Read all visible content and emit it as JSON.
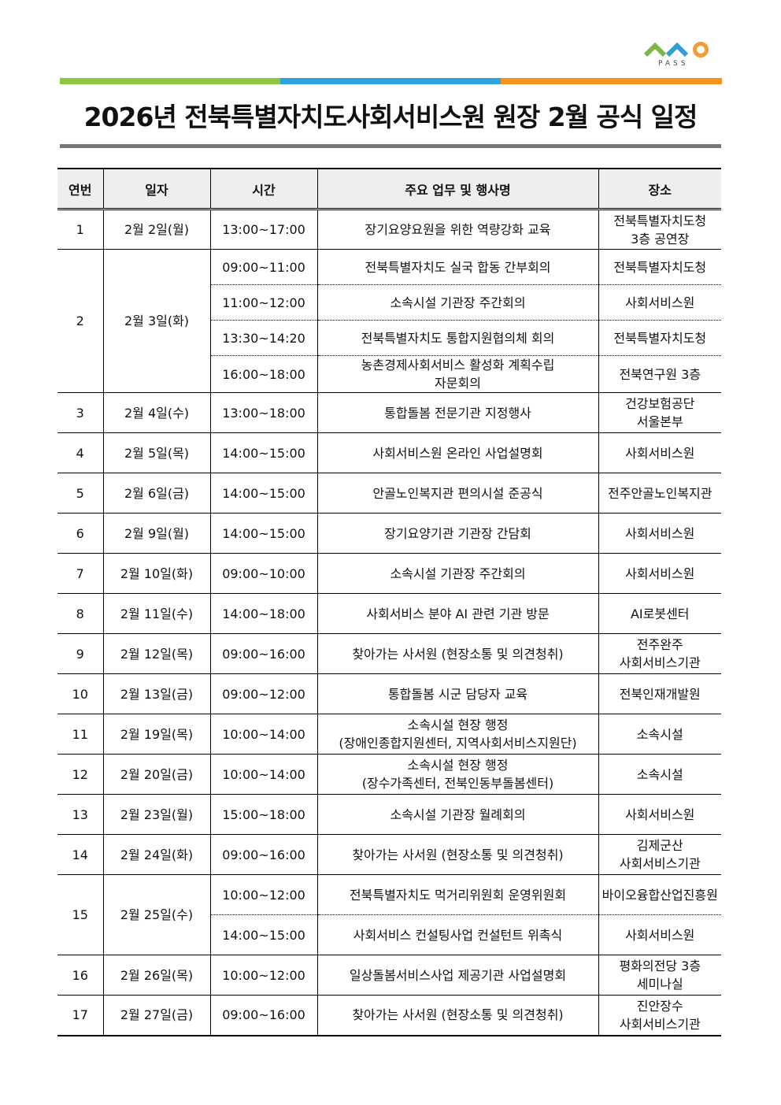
{
  "logo": {
    "text": "PASS",
    "colors": [
      "#7ab648",
      "#2e9fd9",
      "#f39a3a"
    ]
  },
  "header_bar_colors": [
    "#8dc63f",
    "#2ea3dc",
    "#f7941d"
  ],
  "title": "2026년 전북특별자치도사회서비스원 원장 2월 공식 일정",
  "table": {
    "headers": [
      "연번",
      "일자",
      "시간",
      "주요 업무 및 행사명",
      "장소"
    ],
    "rows": [
      {
        "no": "1",
        "date": "2월  2일(월)",
        "events": [
          {
            "time": "13:00~17:00",
            "title": "장기요양요원을 위한 역량강화 교육",
            "place": "전북특별자치도청\n3층 공연장"
          }
        ]
      },
      {
        "no": "2",
        "date": "2월  3일(화)",
        "events": [
          {
            "time": "09:00~11:00",
            "title": "전북특별자치도 실국 합동 간부회의",
            "place": "전북특별자치도청"
          },
          {
            "time": "11:00~12:00",
            "title": "소속시설 기관장 주간회의",
            "place": "사회서비스원"
          },
          {
            "time": "13:30~14:20",
            "title": "전북특별자치도 통합지원협의체 회의",
            "place": "전북특별자치도청"
          },
          {
            "time": "16:00~18:00",
            "title": "농촌경제사회서비스 활성화 계획수립\n자문회의",
            "place": "전북연구원 3층"
          }
        ]
      },
      {
        "no": "3",
        "date": "2월  4일(수)",
        "events": [
          {
            "time": "13:00~18:00",
            "title": "통합돌봄 전문기관 지정행사",
            "place": "건강보험공단\n서울본부"
          }
        ]
      },
      {
        "no": "4",
        "date": "2월  5일(목)",
        "events": [
          {
            "time": "14:00~15:00",
            "title": "사회서비스원 온라인 사업설명회",
            "place": "사회서비스원"
          }
        ]
      },
      {
        "no": "5",
        "date": "2월  6일(금)",
        "events": [
          {
            "time": "14:00~15:00",
            "title": "안골노인복지관 편의시설 준공식",
            "place": "전주안골노인복지관"
          }
        ]
      },
      {
        "no": "6",
        "date": "2월  9일(월)",
        "events": [
          {
            "time": "14:00~15:00",
            "title": "장기요양기관 기관장 간담회",
            "place": "사회서비스원"
          }
        ]
      },
      {
        "no": "7",
        "date": "2월  10일(화)",
        "events": [
          {
            "time": "09:00~10:00",
            "title": "소속시설 기관장 주간회의",
            "place": "사회서비스원"
          }
        ]
      },
      {
        "no": "8",
        "date": "2월  11일(수)",
        "events": [
          {
            "time": "14:00~18:00",
            "title": "사회서비스 분야 AI 관련 기관 방문",
            "place": "AI로봇센터"
          }
        ]
      },
      {
        "no": "9",
        "date": "2월  12일(목)",
        "events": [
          {
            "time": "09:00~16:00",
            "title": "찾아가는 사서원 (현장소통 및 의견청취)",
            "place": "전주완주\n사회서비스기관"
          }
        ]
      },
      {
        "no": "10",
        "date": "2월  13일(금)",
        "events": [
          {
            "time": "09:00~12:00",
            "title": "통합돌봄 시군 담당자 교육",
            "place": "전북인재개발원"
          }
        ]
      },
      {
        "no": "11",
        "date": "2월  19일(목)",
        "events": [
          {
            "time": "10:00~14:00",
            "title": "소속시설 현장 행정\n(장애인종합지원센터, 지역사회서비스지원단)",
            "place": "소속시설"
          }
        ]
      },
      {
        "no": "12",
        "date": "2월  20일(금)",
        "events": [
          {
            "time": "10:00~14:00",
            "title": "소속시설 현장 행정\n(장수가족센터, 전북인동부돌봄센터)",
            "place": "소속시설"
          }
        ]
      },
      {
        "no": "13",
        "date": "2월  23일(월)",
        "events": [
          {
            "time": "15:00~18:00",
            "title": "소속시설 기관장 월례회의",
            "place": "사회서비스원"
          }
        ]
      },
      {
        "no": "14",
        "date": "2월  24일(화)",
        "events": [
          {
            "time": "09:00~16:00",
            "title": "찾아가는 사서원 (현장소통 및 의견청취)",
            "place": "김제군산\n사회서비스기관"
          }
        ]
      },
      {
        "no": "15",
        "date": "2월  25일(수)",
        "events": [
          {
            "time": "10:00~12:00",
            "title": "전북특별자치도 먹거리위원회 운영위원회",
            "place": "바이오융합산업진흥원"
          },
          {
            "time": "14:00~15:00",
            "title": "사회서비스 컨설팅사업 컨설턴트 위촉식",
            "place": "사회서비스원"
          }
        ]
      },
      {
        "no": "16",
        "date": "2월  26일(목)",
        "events": [
          {
            "time": "10:00~12:00",
            "title": "일상돌봄서비스사업 제공기관 사업설명회",
            "place": "평화의전당 3층\n세미나실"
          }
        ]
      },
      {
        "no": "17",
        "date": "2월  27일(금)",
        "events": [
          {
            "time": "09:00~16:00",
            "title": "찾아가는 사서원 (현장소통 및 의견청취)",
            "place": "진안장수\n사회서비스기관"
          }
        ]
      }
    ]
  }
}
